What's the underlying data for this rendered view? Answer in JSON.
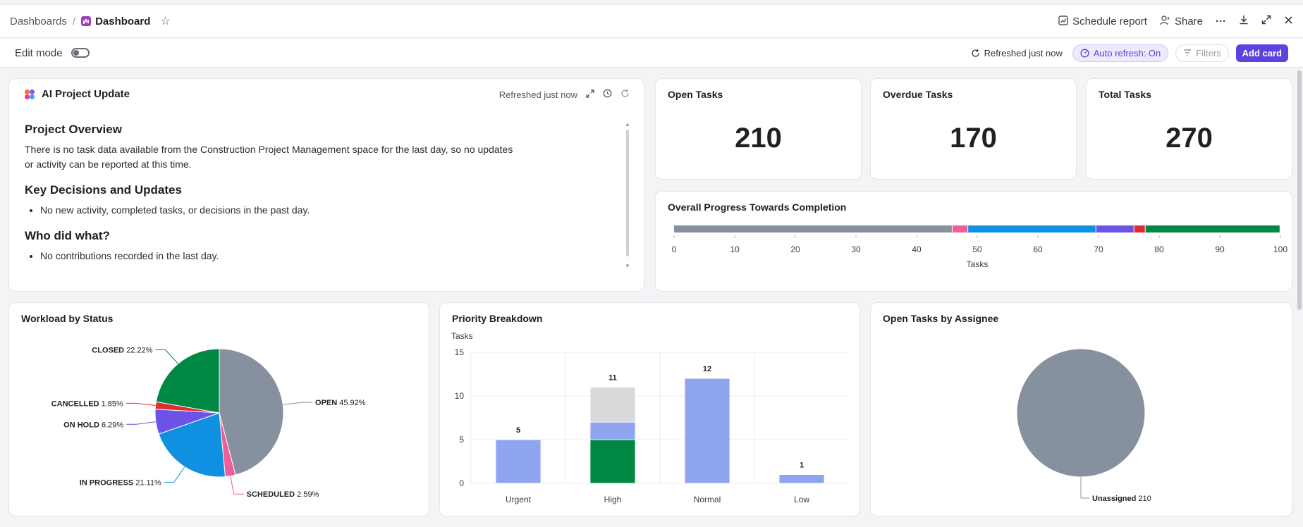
{
  "breadcrumb": {
    "root": "Dashboards",
    "sep": "/",
    "current": "Dashboard"
  },
  "top_actions": {
    "schedule": "Schedule report",
    "share": "Share"
  },
  "subbar": {
    "edit_mode": "Edit mode",
    "refreshed": "Refreshed just now",
    "auto_refresh": "Auto refresh: On",
    "filters": "Filters",
    "add_card": "Add card"
  },
  "ai_card": {
    "title": "AI Project Update",
    "refreshed": "Refreshed just now",
    "sections": {
      "overview_h": "Project Overview",
      "overview_p": "There is no task data available from the Construction Project Management space for the last day, so no updates or activity can be reported at this time.",
      "decisions_h": "Key Decisions and Updates",
      "decisions_li": "No new activity, completed tasks, or decisions in the past day.",
      "who_h": "Who did what?",
      "who_li": "No contributions recorded in the last day."
    }
  },
  "kpis": [
    {
      "title": "Open Tasks",
      "value": "210"
    },
    {
      "title": "Overdue Tasks",
      "value": "170"
    },
    {
      "title": "Total Tasks",
      "value": "270"
    }
  ],
  "progress_card": {
    "title": "Overall Progress Towards Completion",
    "chart_data": {
      "type": "bar",
      "orientation": "horizontal-stacked",
      "xlabel": "Tasks",
      "xlim": [
        0,
        100
      ],
      "ticks": [
        0,
        10,
        20,
        30,
        40,
        50,
        60,
        70,
        80,
        90,
        100
      ],
      "segments": [
        {
          "value": 45.92,
          "color": "#87909e"
        },
        {
          "value": 2.59,
          "color": "#ee5e99"
        },
        {
          "value": 21.11,
          "color": "#1090e0"
        },
        {
          "value": 6.29,
          "color": "#6a53e6"
        },
        {
          "value": 1.85,
          "color": "#e02d2d"
        },
        {
          "value": 22.22,
          "color": "#008844"
        }
      ]
    }
  },
  "status_card": {
    "title": "Workload by Status",
    "chart_data": {
      "type": "pie",
      "slices": [
        {
          "label": "OPEN",
          "pct": "45.92%",
          "value": 45.92,
          "color": "#87909e"
        },
        {
          "label": "SCHEDULED",
          "pct": "2.59%",
          "value": 2.59,
          "color": "#ee5e99"
        },
        {
          "label": "IN PROGRESS",
          "pct": "21.11%",
          "value": 21.11,
          "color": "#1090e0"
        },
        {
          "label": "ON HOLD",
          "pct": "6.29%",
          "value": 6.29,
          "color": "#6a53e6"
        },
        {
          "label": "CANCELLED",
          "pct": "1.85%",
          "value": 1.85,
          "color": "#e02d2d"
        },
        {
          "label": "CLOSED",
          "pct": "22.22%",
          "value": 22.22,
          "color": "#008844"
        }
      ]
    }
  },
  "priority_card": {
    "title": "Priority Breakdown",
    "chart_data": {
      "type": "bar",
      "ylabel": "Tasks",
      "ylim": [
        0,
        15
      ],
      "yticks": [
        0,
        5,
        10,
        15
      ],
      "categories": [
        "Urgent",
        "High",
        "Normal",
        "Low"
      ],
      "totals": [
        "5",
        "11",
        "12",
        "1"
      ],
      "stacks": [
        [
          {
            "value": 5,
            "color": "#8fa5ef"
          }
        ],
        [
          {
            "value": 5,
            "color": "#008844"
          },
          {
            "value": 2,
            "color": "#8fa5ef"
          },
          {
            "value": 4,
            "color": "#d9d9db"
          }
        ],
        [
          {
            "value": 12,
            "color": "#8fa5ef"
          }
        ],
        [
          {
            "value": 1,
            "color": "#8fa5ef"
          }
        ]
      ]
    }
  },
  "assignee_card": {
    "title": "Open Tasks by Assignee",
    "chart_data": {
      "type": "pie",
      "slices": [
        {
          "label": "Unassigned",
          "count": "210",
          "value": 210,
          "color": "#87909e"
        }
      ]
    }
  }
}
